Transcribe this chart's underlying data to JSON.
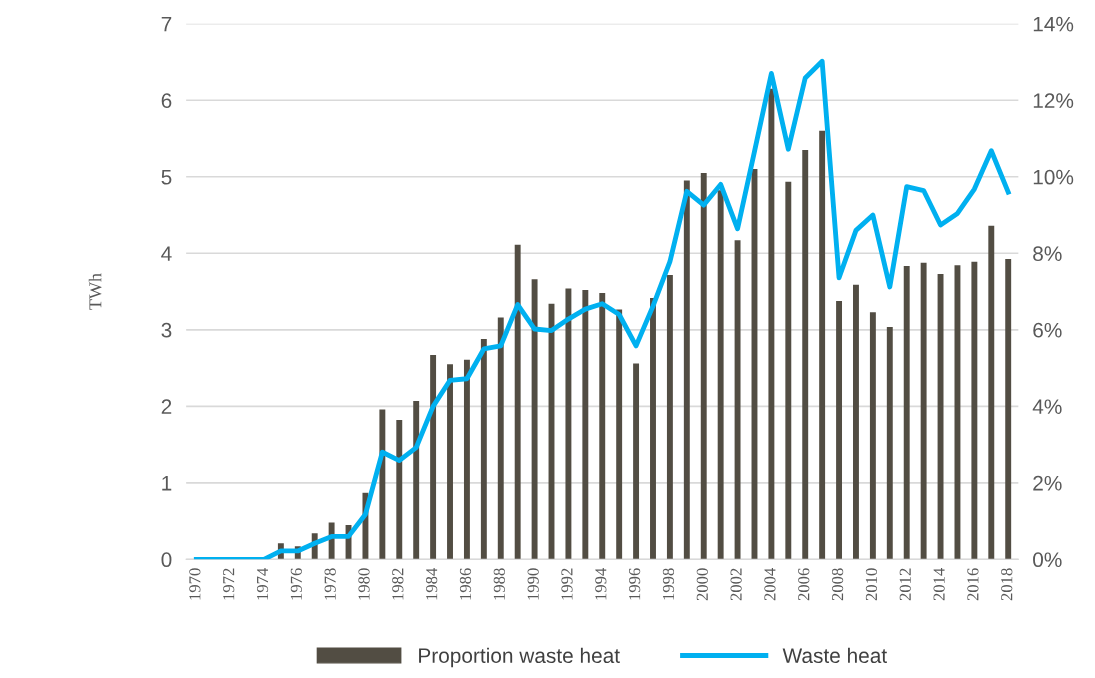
{
  "chart_data": {
    "type": "bar",
    "categories": [
      "1970",
      null,
      "1972",
      null,
      "1974",
      null,
      "1976",
      null,
      "1978",
      null,
      "1980",
      null,
      "1982",
      null,
      "1984",
      null,
      "1986",
      null,
      "1988",
      null,
      "1990",
      null,
      "1992",
      null,
      "1994",
      null,
      "1996",
      null,
      "1998",
      null,
      "2000",
      null,
      "2002",
      null,
      "2004",
      null,
      "2006",
      null,
      "2008",
      null,
      "2010",
      null,
      "2012",
      null,
      "2014",
      null,
      "2016",
      null,
      "2018"
    ],
    "series": [
      {
        "name": "Proportion waste heat",
        "axis": "y2",
        "color": "#524d43",
        "values": [
          0,
          0,
          0,
          0,
          0,
          0.42,
          0.34,
          0.68,
          0.96,
          0.9,
          1.74,
          3.92,
          3.64,
          4.14,
          5.34,
          5.1,
          5.22,
          5.76,
          6.32,
          8.22,
          7.32,
          6.68,
          7.08,
          7.04,
          6.96,
          6.53,
          5.12,
          6.83,
          7.43,
          9.9,
          10.1,
          9.65,
          8.34,
          10.2,
          12.3,
          9.87,
          10.7,
          11.2,
          6.75,
          7.18,
          6.46,
          6.07,
          7.67,
          7.75,
          7.46,
          7.69,
          7.78,
          8.72,
          7.85
        ]
      },
      {
        "name": "Waste heat",
        "type": "line",
        "color": "#00b0f0",
        "values": [
          0,
          0,
          0,
          0,
          0,
          0.11,
          0.11,
          0.21,
          0.3,
          0.3,
          0.59,
          1.4,
          1.29,
          1.46,
          2.0,
          2.34,
          2.36,
          2.75,
          2.79,
          3.33,
          3.01,
          2.99,
          3.14,
          3.27,
          3.34,
          3.2,
          2.79,
          3.31,
          3.89,
          4.81,
          4.63,
          4.9,
          4.32,
          5.33,
          6.35,
          5.36,
          6.29,
          6.51,
          3.68,
          4.3,
          4.5,
          3.56,
          4.87,
          4.82,
          4.37,
          4.52,
          4.84,
          5.34,
          4.8
        ]
      }
    ],
    "ylabel": "TWh",
    "ylim": [
      0,
      7
    ],
    "yticks": [
      0,
      1,
      2,
      3,
      4,
      5,
      6,
      7
    ],
    "y2lim": [
      0,
      14
    ],
    "y2ticks": [
      {
        "value": 0,
        "label": "0%"
      },
      {
        "value": 2,
        "label": "2%"
      },
      {
        "value": 4,
        "label": "4%"
      },
      {
        "value": 6,
        "label": "6%"
      },
      {
        "value": 8,
        "label": "8%"
      },
      {
        "value": 10,
        "label": "10%"
      },
      {
        "value": 12,
        "label": "12%"
      },
      {
        "value": 14,
        "label": "14%"
      }
    ],
    "grid": "y",
    "legend": "bottom",
    "marker": "none",
    "line_style": "solid"
  }
}
